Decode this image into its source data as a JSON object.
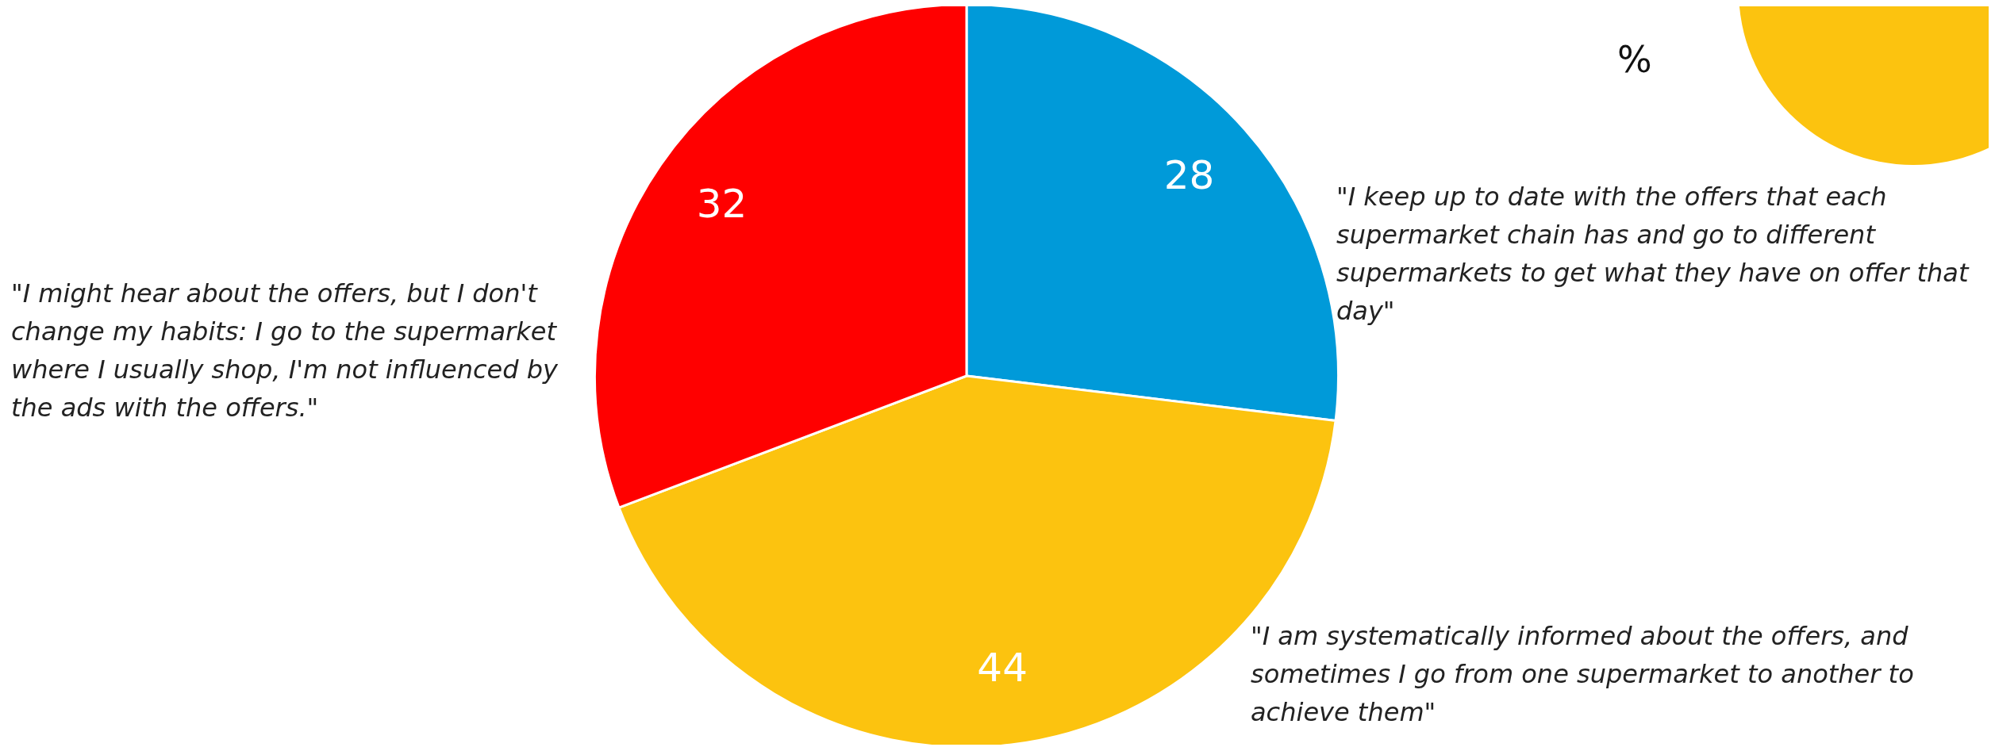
{
  "chart_data": {
    "type": "pie",
    "categories": [
      "\"I keep up to date with the offers that each supermarket chain has and go to different supermarkets to get what they have on offer that day\"",
      "\"I am systematically informed about the offers, and sometimes I go from one supermarket to another to achieve them\"",
      "\"I might hear about the offers, but I don't change my habits: I go to the supermarket where I usually shop, I'm not influenced by the ads with the offers.\""
    ],
    "values": [
      28,
      44,
      32
    ],
    "colors": [
      "#009ad9",
      "#fcc30f",
      "#ff0000"
    ],
    "data_labels": true,
    "legend": false,
    "annotations": [
      "%"
    ]
  }
}
